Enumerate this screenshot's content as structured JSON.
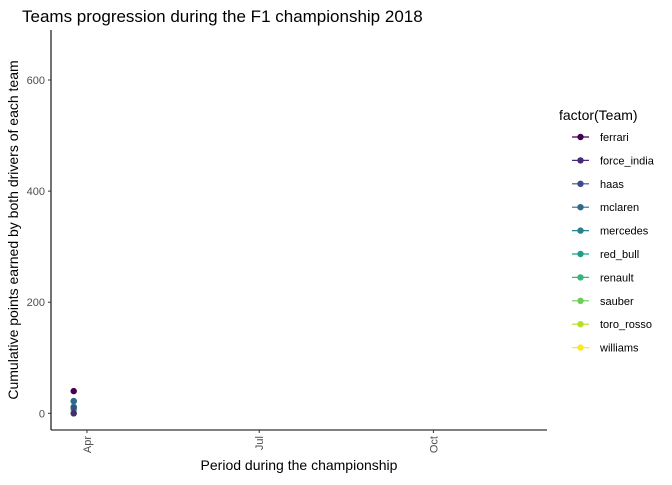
{
  "chart_data": {
    "type": "line",
    "title": "Teams progression during the F1 championship 2018",
    "xlabel": "Period during the championship",
    "ylabel": "Cumulative points earned by both drivers of each team",
    "x_axis": {
      "type": "date",
      "range": [
        "2018-03-13",
        "2018-11-30"
      ],
      "ticks": [
        {
          "value": "2018-04-01",
          "label": "Apr"
        },
        {
          "value": "2018-07-01",
          "label": "Jul"
        },
        {
          "value": "2018-10-01",
          "label": "Oct"
        }
      ]
    },
    "y_axis": {
      "range": [
        -30,
        690
      ],
      "ticks": [
        0,
        200,
        400,
        600
      ]
    },
    "grid": false,
    "legend": {
      "title": "factor(Team)",
      "position": "right"
    },
    "series": [
      {
        "name": "ferrari",
        "color": "#440154",
        "points": [
          {
            "x": "2018-03-25",
            "y": 40
          }
        ]
      },
      {
        "name": "force_india",
        "color": "#482878",
        "points": [
          {
            "x": "2018-03-25",
            "y": 0
          }
        ]
      },
      {
        "name": "haas",
        "color": "#3E4A89",
        "points": [
          {
            "x": "2018-03-25",
            "y": 10
          }
        ]
      },
      {
        "name": "mclaren",
        "color": "#31688E",
        "points": [
          {
            "x": "2018-03-25",
            "y": 22
          }
        ]
      },
      {
        "name": "mercedes",
        "color": "#26828E",
        "points": [
          {
            "x": "2018-03-25",
            "y": 22
          }
        ]
      },
      {
        "name": "red_bull",
        "color": "#1F9E89",
        "points": [
          {
            "x": "2018-03-25",
            "y": 12
          }
        ]
      },
      {
        "name": "renault",
        "color": "#35B779",
        "points": [
          {
            "x": "2018-03-25",
            "y": 6
          }
        ]
      },
      {
        "name": "sauber",
        "color": "#6DCD59",
        "points": [
          {
            "x": "2018-03-25",
            "y": 0
          }
        ]
      },
      {
        "name": "toro_rosso",
        "color": "#B4DE2C",
        "points": [
          {
            "x": "2018-03-25",
            "y": 0
          }
        ]
      },
      {
        "name": "williams",
        "color": "#FDE725",
        "points": [
          {
            "x": "2018-03-25",
            "y": 0
          }
        ]
      }
    ]
  }
}
